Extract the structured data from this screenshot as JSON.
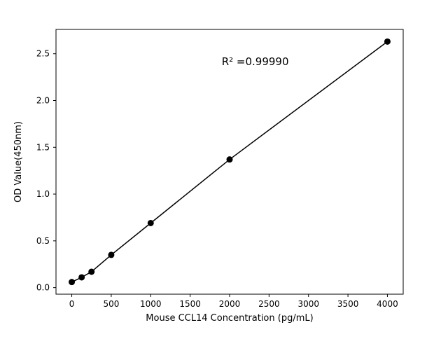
{
  "figure": {
    "background": "#ffffff",
    "axis_color": "#000000"
  },
  "chart_data": {
    "type": "scatter",
    "title": "",
    "xlabel": "Mouse CCL14 Concentration (pg/mL)",
    "ylabel": "OD Value(450nm)",
    "x": [
      0,
      125,
      250,
      500,
      1000,
      2000,
      4000
    ],
    "y": [
      0.06,
      0.11,
      0.17,
      0.35,
      0.69,
      1.37,
      2.63
    ],
    "xlim": [
      -200,
      4200
    ],
    "ylim": [
      -0.07,
      2.76
    ],
    "xticks": [
      0,
      500,
      1000,
      1500,
      2000,
      2500,
      3000,
      3500,
      4000
    ],
    "yticks": [
      0.0,
      0.5,
      1.0,
      1.5,
      2.0,
      2.5
    ],
    "line": true,
    "grid": false,
    "legend": "none",
    "marker_color": "#000000",
    "line_color": "#000000",
    "annotation": {
      "text": "R² =0.99990",
      "x": 1900,
      "y": 2.38
    }
  }
}
